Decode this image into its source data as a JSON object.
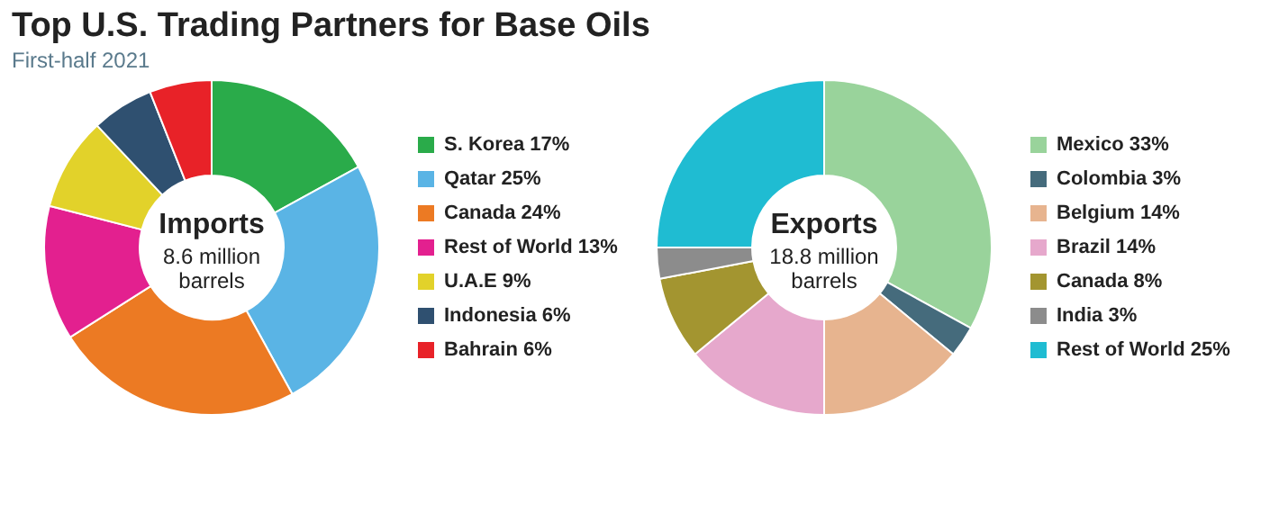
{
  "chart_data": [
    {
      "type": "donut",
      "title": "Top U.S. Trading Partners for Base Oils",
      "subtitle": "First-half 2021",
      "annotations": [
        "Imports",
        "8.6 million\nbarrels"
      ],
      "categories": [
        "S. Korea",
        "Qatar",
        "Canada",
        "Rest of World",
        "U.A.E",
        "Indonesia",
        "Bahrain"
      ],
      "values": [
        17,
        25,
        24,
        13,
        9,
        6,
        6
      ],
      "value_labels": [
        "17%",
        "25%",
        "24%",
        "13%",
        "9%",
        "6%",
        "6%"
      ],
      "colors": [
        "#2aab4a",
        "#5ab4e5",
        "#ec7a23",
        "#e3208f",
        "#e2d22a",
        "#2f5070",
        "#e82228"
      ],
      "legend": "right"
    },
    {
      "type": "donut",
      "annotations": [
        "Exports",
        "18.8 million\nbarrels"
      ],
      "categories": [
        "Mexico",
        "Colombia",
        "Belgium",
        "Brazil",
        "Canada",
        "India",
        "Rest of World"
      ],
      "values": [
        33,
        3,
        14,
        14,
        8,
        3,
        25
      ],
      "value_labels": [
        "33%",
        "3%",
        "14%",
        "14%",
        "8%",
        "3%",
        "25%"
      ],
      "colors": [
        "#99d39b",
        "#456b7c",
        "#e7b48f",
        "#e6a8cc",
        "#a39530",
        "#8c8c8c",
        "#1fbcd2"
      ],
      "legend": "right"
    }
  ]
}
